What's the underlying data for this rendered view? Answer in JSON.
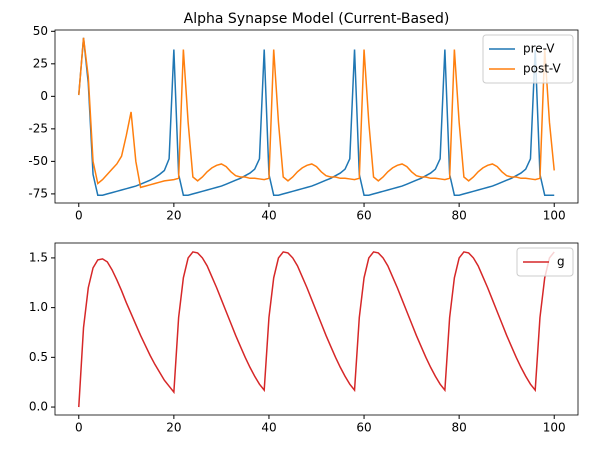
{
  "chart_data": [
    {
      "type": "line",
      "title": "Alpha Synapse Model (Current-Based)",
      "x": [
        0,
        1,
        2,
        3,
        4,
        5,
        6,
        7,
        8,
        9,
        10,
        11,
        12,
        13,
        14,
        15,
        16,
        17,
        18,
        19,
        20,
        21,
        22,
        23,
        24,
        25,
        26,
        27,
        28,
        29,
        30,
        31,
        32,
        33,
        34,
        35,
        36,
        37,
        38,
        39,
        40,
        41,
        42,
        43,
        44,
        45,
        46,
        47,
        48,
        49,
        50,
        51,
        52,
        53,
        54,
        55,
        56,
        57,
        58,
        59,
        60,
        61,
        62,
        63,
        64,
        65,
        66,
        67,
        68,
        69,
        70,
        71,
        72,
        73,
        74,
        75,
        76,
        77,
        78,
        79,
        80,
        81,
        82,
        83,
        84,
        85,
        86,
        87,
        88,
        89,
        90,
        91,
        92,
        93,
        94,
        95,
        96,
        97,
        98,
        99,
        100
      ],
      "series": [
        {
          "name": "pre-V",
          "color": "#1f77b4",
          "values": [
            1,
            45,
            10,
            -60,
            -76,
            -76,
            -75,
            -74,
            -73,
            -72,
            -71,
            -70,
            -69,
            -67.5,
            -66,
            -64.5,
            -62.5,
            -60,
            -57,
            -48,
            36,
            -60,
            -76,
            -76,
            -75,
            -74,
            -73,
            -72,
            -71,
            -70,
            -69,
            -67.5,
            -66,
            -64.5,
            -63,
            -61,
            -59,
            -56,
            -48,
            36,
            -60,
            -76,
            -76,
            -75,
            -74,
            -73,
            -72,
            -71,
            -70,
            -69,
            -67.5,
            -66,
            -64.5,
            -63,
            -61,
            -59,
            -56,
            -48,
            36,
            -60,
            -76,
            -76,
            -75,
            -74,
            -73,
            -72,
            -71,
            -70,
            -69,
            -67.5,
            -66,
            -64.5,
            -63,
            -61,
            -59,
            -56,
            -48,
            36,
            -60,
            -76,
            -76,
            -75,
            -74,
            -73,
            -72,
            -71,
            -70,
            -69,
            -67.5,
            -66,
            -64.5,
            -63,
            -61,
            -59,
            -56,
            -48,
            36,
            -60,
            -76,
            -76,
            -76
          ]
        },
        {
          "name": "post-V",
          "color": "#ff7f0e",
          "values": [
            1,
            45,
            15,
            -50,
            -67,
            -64,
            -60,
            -56,
            -52,
            -46,
            -30,
            -12,
            -50,
            -70,
            -69,
            -68,
            -67,
            -66,
            -65,
            -64.5,
            -64,
            -63,
            36,
            -20,
            -62,
            -65,
            -62,
            -58,
            -55,
            -53,
            -52,
            -54,
            -58,
            -61,
            -62,
            -62,
            -63,
            -63,
            -63.5,
            -64,
            -63,
            36,
            -20,
            -62,
            -65,
            -62,
            -58,
            -55,
            -53,
            -52,
            -54,
            -58,
            -61,
            -62,
            -62,
            -63,
            -63,
            -63.5,
            -64,
            -63,
            36,
            -20,
            -62,
            -65,
            -62,
            -58,
            -55,
            -53,
            -52,
            -54,
            -58,
            -61,
            -62,
            -62,
            -63,
            -63,
            -63.5,
            -64,
            -63,
            36,
            -20,
            -62,
            -65,
            -62,
            -58,
            -55,
            -53,
            -52,
            -54,
            -58,
            -61,
            -62,
            -62,
            -63,
            -63,
            -63.5,
            -64,
            -63,
            36,
            -20,
            -57
          ]
        }
      ],
      "xlim": [
        -5,
        105
      ],
      "xticks": [
        0,
        20,
        40,
        60,
        80,
        100
      ],
      "ylim": [
        -82,
        51
      ],
      "yticks": [
        -75,
        -50,
        -25,
        0,
        25,
        50
      ],
      "legend": "upper right"
    },
    {
      "type": "line",
      "x": [
        0,
        1,
        2,
        3,
        4,
        5,
        6,
        7,
        8,
        9,
        10,
        11,
        12,
        13,
        14,
        15,
        16,
        17,
        18,
        19,
        20,
        21,
        22,
        23,
        24,
        25,
        26,
        27,
        28,
        29,
        30,
        31,
        32,
        33,
        34,
        35,
        36,
        37,
        38,
        39,
        40,
        41,
        42,
        43,
        44,
        45,
        46,
        47,
        48,
        49,
        50,
        51,
        52,
        53,
        54,
        55,
        56,
        57,
        58,
        59,
        60,
        61,
        62,
        63,
        64,
        65,
        66,
        67,
        68,
        69,
        70,
        71,
        72,
        73,
        74,
        75,
        76,
        77,
        78,
        79,
        80,
        81,
        82,
        83,
        84,
        85,
        86,
        87,
        88,
        89,
        90,
        91,
        92,
        93,
        94,
        95,
        96,
        97,
        98,
        99,
        100
      ],
      "series": [
        {
          "name": "g",
          "color": "#d62728",
          "values": [
            0,
            0.8,
            1.2,
            1.4,
            1.48,
            1.49,
            1.46,
            1.38,
            1.28,
            1.17,
            1.05,
            0.94,
            0.83,
            0.72,
            0.62,
            0.52,
            0.43,
            0.35,
            0.27,
            0.21,
            0.15,
            0.9,
            1.3,
            1.5,
            1.56,
            1.55,
            1.5,
            1.42,
            1.31,
            1.2,
            1.08,
            0.96,
            0.84,
            0.72,
            0.61,
            0.5,
            0.4,
            0.31,
            0.23,
            0.17,
            0.9,
            1.3,
            1.5,
            1.56,
            1.55,
            1.5,
            1.42,
            1.31,
            1.2,
            1.08,
            0.96,
            0.84,
            0.72,
            0.61,
            0.5,
            0.4,
            0.31,
            0.23,
            0.17,
            0.9,
            1.3,
            1.5,
            1.56,
            1.55,
            1.5,
            1.42,
            1.31,
            1.2,
            1.08,
            0.96,
            0.84,
            0.72,
            0.61,
            0.5,
            0.4,
            0.31,
            0.23,
            0.17,
            0.9,
            1.3,
            1.5,
            1.56,
            1.55,
            1.5,
            1.42,
            1.31,
            1.2,
            1.08,
            0.96,
            0.84,
            0.72,
            0.61,
            0.5,
            0.4,
            0.31,
            0.23,
            0.17,
            0.9,
            1.3,
            1.5,
            1.56
          ]
        }
      ],
      "xlim": [
        -5,
        105
      ],
      "xticks": [
        0,
        20,
        40,
        60,
        80,
        100
      ],
      "ylim": [
        -0.08,
        1.65
      ],
      "yticks": [
        {
          "value": 0,
          "label": "0.0"
        },
        0.5,
        {
          "value": 1,
          "label": "1.0"
        },
        1.5
      ],
      "legend": "upper right"
    }
  ]
}
